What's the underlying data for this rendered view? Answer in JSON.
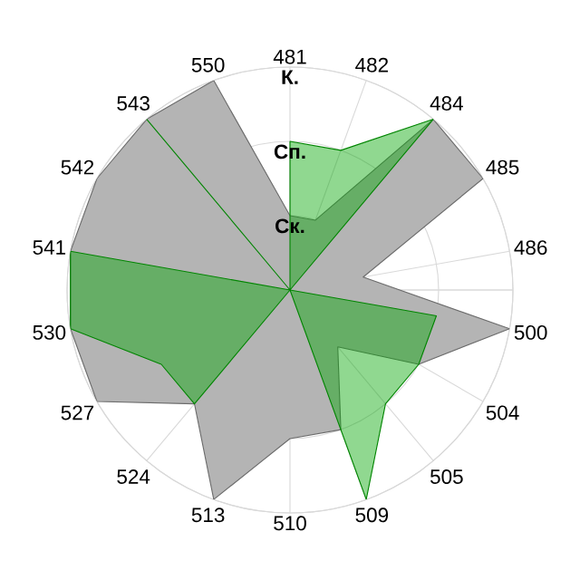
{
  "chart_data": {
    "type": "radar",
    "categories": [
      "481",
      "482",
      "484",
      "485",
      "486",
      "500",
      "504",
      "505",
      "509",
      "510",
      "513",
      "524",
      "527",
      "530",
      "541",
      "542",
      "543",
      "550"
    ],
    "series": [
      {
        "color": "#b4b4b4",
        "values": [
          1,
          1,
          3,
          3,
          1,
          3,
          2,
          1,
          2,
          2,
          3,
          2,
          3,
          3,
          3,
          3,
          3,
          3
        ]
      },
      {
        "color": "#03a603",
        "values": [
          2,
          2,
          3,
          0,
          0,
          2,
          2,
          2,
          3,
          0,
          0,
          2,
          2,
          3,
          3,
          0,
          3,
          0
        ]
      }
    ],
    "ylim": [
      0,
      3
    ],
    "yticks": [
      {
        "value": 1,
        "label": "Ск."
      },
      {
        "value": 2,
        "label": "Сп."
      },
      {
        "value": 3,
        "label": "К."
      }
    ],
    "grid": true
  }
}
